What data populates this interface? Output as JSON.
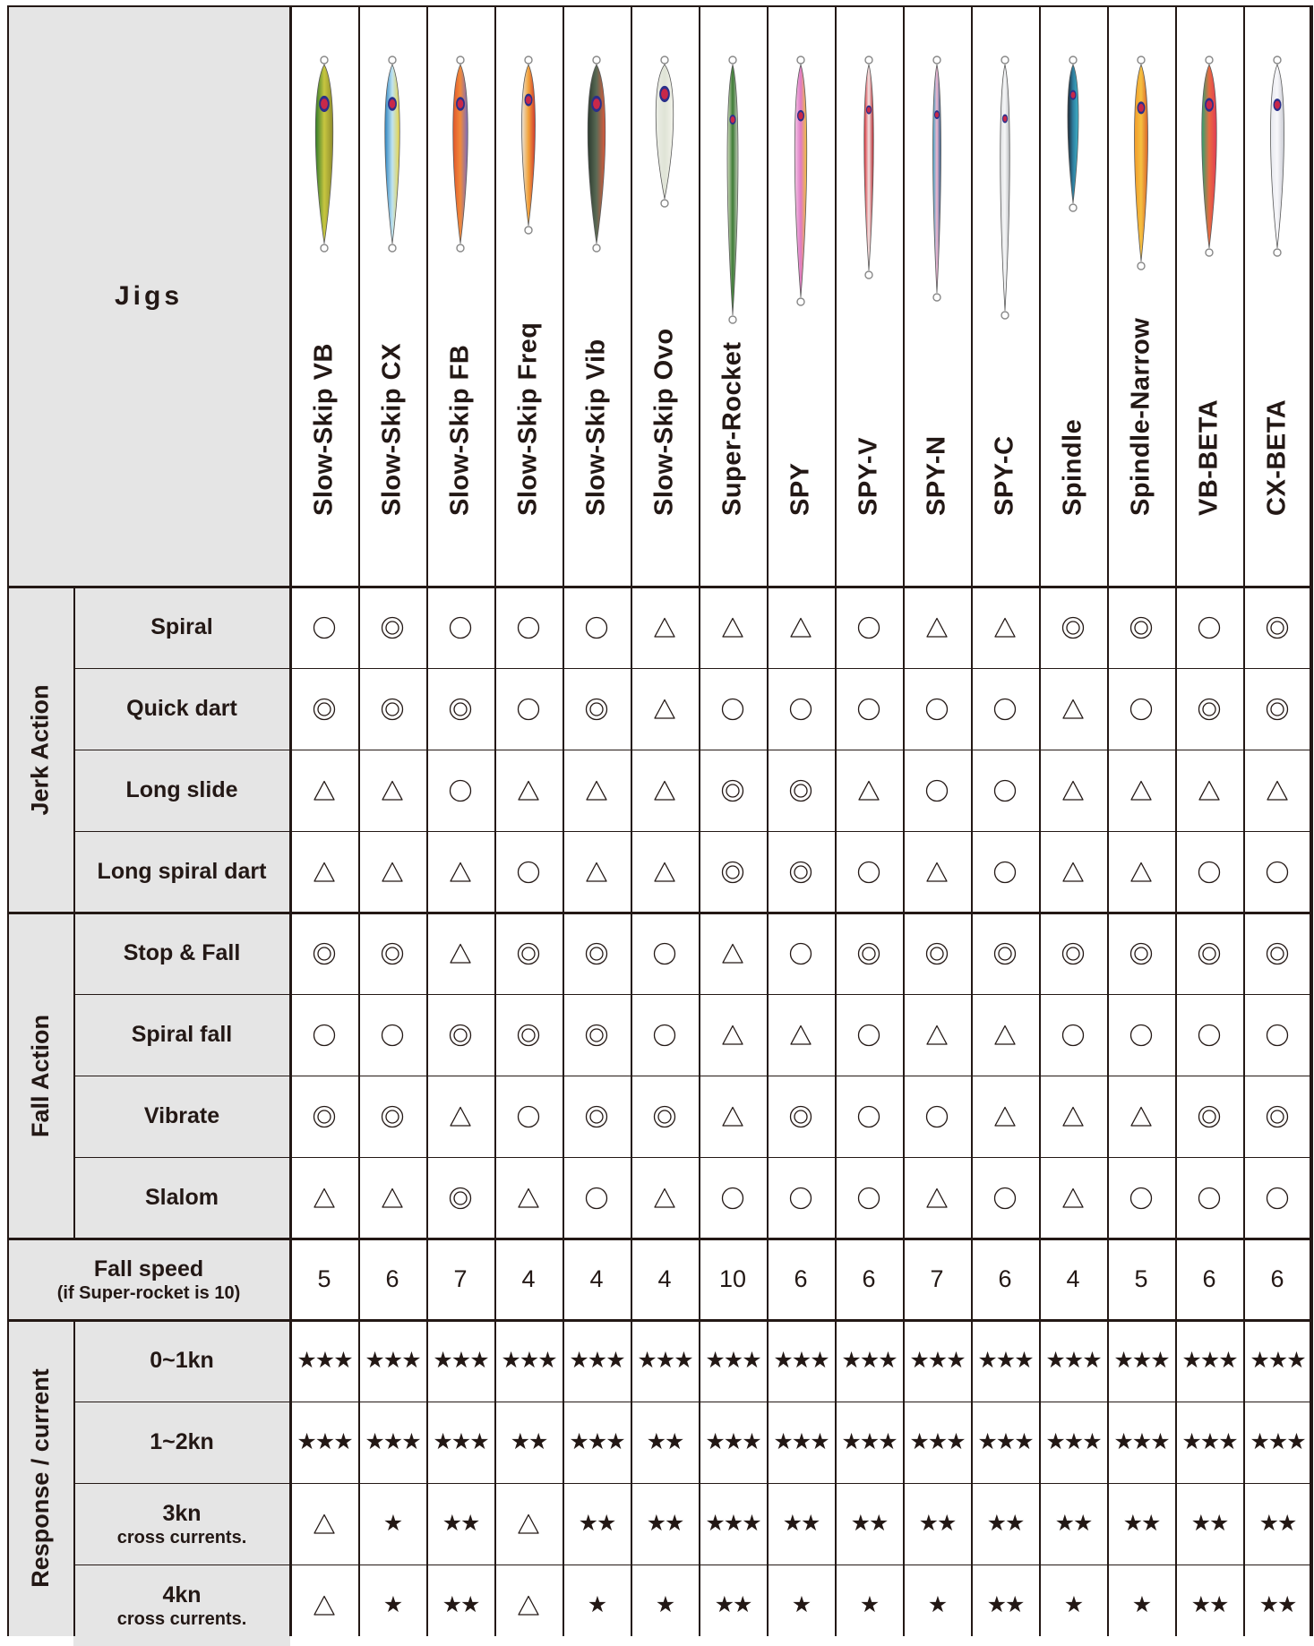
{
  "header": {
    "title": "Jigs"
  },
  "jigs": [
    {
      "name": "Slow-Skip VB",
      "colors": [
        "#2f7a2a",
        "#c7c640",
        "#8e8b2c"
      ]
    },
    {
      "name": "Slow-Skip CX",
      "colors": [
        "#2a83c0",
        "#bfe3f2",
        "#e8d442"
      ]
    },
    {
      "name": "Slow-Skip FB",
      "colors": [
        "#e2552a",
        "#f08a3b",
        "#7a6cc0"
      ]
    },
    {
      "name": "Slow-Skip Freq",
      "colors": [
        "#e8e3dc",
        "#f2a33a",
        "#d1372f"
      ]
    },
    {
      "name": "Slow-Skip Vib",
      "colors": [
        "#2c3a2e",
        "#5a6a55",
        "#e0583a"
      ]
    },
    {
      "name": "Slow-Skip Ovo",
      "colors": [
        "#eceee6",
        "#dfe3d6",
        "#f3f3ea"
      ]
    },
    {
      "name": "Super-Rocket",
      "colors": [
        "#d9e3c5",
        "#3c7a35",
        "#c8cfc0"
      ]
    },
    {
      "name": "SPY",
      "colors": [
        "#f2c6e4",
        "#e07ac4",
        "#f0c33a"
      ]
    },
    {
      "name": "SPY-V",
      "colors": [
        "#d8262e",
        "#f3e6e6",
        "#b51d24"
      ]
    },
    {
      "name": "SPY-N",
      "colors": [
        "#37a6c8",
        "#f1b5cf",
        "#1e5c8a"
      ]
    },
    {
      "name": "SPY-C",
      "colors": [
        "#dfe0e2",
        "#f5f6f7",
        "#b8babd"
      ]
    },
    {
      "name": "Spindle",
      "colors": [
        "#1c2430",
        "#2f7fa0",
        "#3fb2c8"
      ]
    },
    {
      "name": "Spindle-Narrow",
      "colors": [
        "#f29a2a",
        "#f5c040",
        "#d9622a"
      ]
    },
    {
      "name": "VB-BETA",
      "colors": [
        "#2aa570",
        "#e86a40",
        "#e23a55"
      ]
    },
    {
      "name": "CX-BETA",
      "colors": [
        "#e7e9ef",
        "#f7f7fa",
        "#c9cbd3"
      ]
    }
  ],
  "symbol_names": {
    "dc": "double circle",
    "c": "circle",
    "t": "triangle"
  },
  "groups": [
    {
      "label": "Jerk Action",
      "rows": [
        {
          "label": "Spiral",
          "values": [
            "c",
            "dc",
            "c",
            "c",
            "c",
            "t",
            "t",
            "t",
            "c",
            "t",
            "t",
            "dc",
            "dc",
            "c",
            "dc"
          ]
        },
        {
          "label": "Quick dart",
          "values": [
            "dc",
            "dc",
            "dc",
            "c",
            "dc",
            "t",
            "c",
            "c",
            "c",
            "c",
            "c",
            "t",
            "c",
            "dc",
            "dc"
          ]
        },
        {
          "label": "Long slide",
          "values": [
            "t",
            "t",
            "c",
            "t",
            "t",
            "t",
            "dc",
            "dc",
            "t",
            "c",
            "c",
            "t",
            "t",
            "t",
            "t"
          ]
        },
        {
          "label": "Long spiral dart",
          "values": [
            "t",
            "t",
            "t",
            "c",
            "t",
            "t",
            "dc",
            "dc",
            "c",
            "t",
            "c",
            "t",
            "t",
            "c",
            "c"
          ]
        }
      ]
    },
    {
      "label": "Fall Action",
      "rows": [
        {
          "label": "Stop & Fall",
          "values": [
            "dc",
            "dc",
            "t",
            "dc",
            "dc",
            "c",
            "t",
            "c",
            "dc",
            "dc",
            "dc",
            "dc",
            "dc",
            "dc",
            "dc"
          ]
        },
        {
          "label": "Spiral fall",
          "values": [
            "c",
            "c",
            "dc",
            "dc",
            "dc",
            "c",
            "t",
            "t",
            "c",
            "t",
            "t",
            "c",
            "c",
            "c",
            "c"
          ]
        },
        {
          "label": "Vibrate",
          "values": [
            "dc",
            "dc",
            "t",
            "c",
            "dc",
            "dc",
            "t",
            "dc",
            "c",
            "c",
            "t",
            "t",
            "t",
            "dc",
            "dc"
          ]
        },
        {
          "label": "Slalom",
          "values": [
            "t",
            "t",
            "dc",
            "t",
            "c",
            "t",
            "c",
            "c",
            "c",
            "t",
            "c",
            "t",
            "c",
            "c",
            "c"
          ]
        }
      ]
    }
  ],
  "fall_speed": {
    "label": "Fall speed",
    "sublabel": "(if Super-rocket is 10)",
    "values": [
      "5",
      "6",
      "7",
      "4",
      "4",
      "4",
      "10",
      "6",
      "6",
      "7",
      "6",
      "4",
      "5",
      "6",
      "6"
    ]
  },
  "response": {
    "label": "Response / current",
    "rows": [
      {
        "label": "0~1kn",
        "sublabel": "",
        "values": [
          "★★★",
          "★★★",
          "★★★",
          "★★★",
          "★★★",
          "★★★",
          "★★★",
          "★★★",
          "★★★",
          "★★★",
          "★★★",
          "★★★",
          "★★★",
          "★★★",
          "★★★"
        ]
      },
      {
        "label": "1~2kn",
        "sublabel": "",
        "values": [
          "★★★",
          "★★★",
          "★★★",
          "★★",
          "★★★",
          "★★",
          "★★★",
          "★★★",
          "★★★",
          "★★★",
          "★★★",
          "★★★",
          "★★★",
          "★★★",
          "★★★"
        ]
      },
      {
        "label": "3kn",
        "sublabel": "cross currents.",
        "values": [
          "t",
          "★",
          "★★",
          "t",
          "★★",
          "★★",
          "★★★",
          "★★",
          "★★",
          "★★",
          "★★",
          "★★",
          "★★",
          "★★",
          "★★"
        ]
      },
      {
        "label": "4kn",
        "sublabel": "cross currents.",
        "values": [
          "t",
          "★",
          "★★",
          "t",
          "★",
          "★",
          "★★",
          "★",
          "★",
          "★",
          "★★",
          "★",
          "★",
          "★★",
          "★★"
        ]
      }
    ]
  }
}
